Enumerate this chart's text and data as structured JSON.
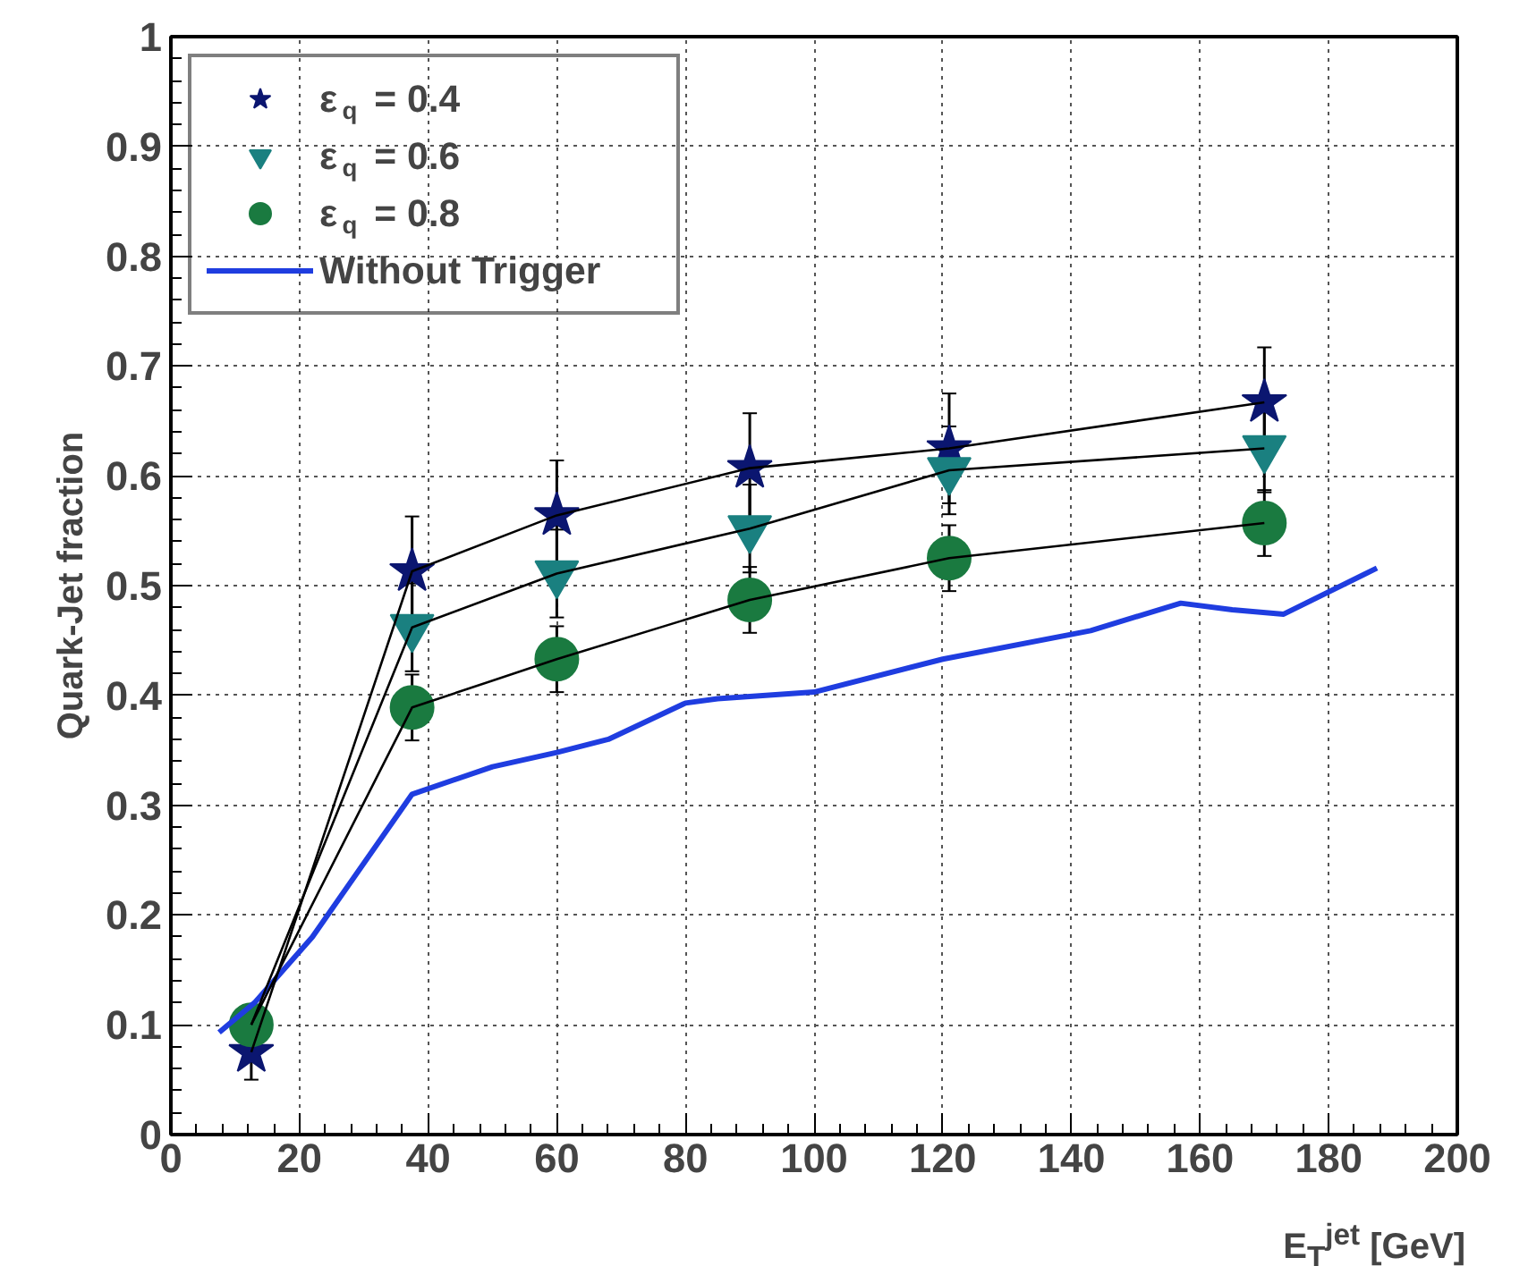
{
  "chart_data": {
    "type": "scatter",
    "xlabel": "E$_{T}$$^{jet}$ [GeV]",
    "ylabel": "Quark-Jet fraction",
    "xlim": [
      0,
      200
    ],
    "xticks": [
      0,
      20,
      40,
      60,
      80,
      100,
      120,
      140,
      160,
      180,
      200
    ],
    "ylim": [
      0,
      1
    ],
    "yticks": [
      0,
      0.1,
      0.2,
      0.3,
      0.4,
      0.5,
      0.6,
      0.7,
      0.8,
      0.9,
      1
    ],
    "grid": true,
    "legend": "top left",
    "line_style": "solid",
    "series": [
      {
        "type": "line",
        "color": "#000000",
        "marker": "none",
        "x": [
          12.5,
          37.5,
          60,
          90,
          121,
          170
        ],
        "values": [
          0.075,
          0.513,
          0.564,
          0.607,
          0.625,
          0.667
        ]
      },
      {
        "type": "line",
        "color": "#000000",
        "marker": "none",
        "x": [
          12.5,
          37.5,
          60,
          90,
          121,
          170
        ],
        "values": [
          0.1,
          0.462,
          0.511,
          0.552,
          0.605,
          0.625
        ]
      },
      {
        "type": "line",
        "color": "#000000",
        "marker": "none",
        "x": [
          12.5,
          37.5,
          60,
          90,
          121,
          170
        ],
        "values": [
          0.1,
          0.389,
          0.433,
          0.487,
          0.525,
          0.557
        ]
      },
      {
        "name": "ε$_{q}$ = 0.4",
        "color": "#0b1670",
        "marker": "star",
        "x": [
          12.5,
          37.5,
          60,
          90,
          121,
          170
        ],
        "values": [
          0.075,
          0.513,
          0.564,
          0.607,
          0.625,
          0.667
        ],
        "errors": [
          0.025,
          0.05,
          0.05,
          0.05,
          0.05,
          0.05
        ]
      },
      {
        "name": "ε$_{q}$ = 0.6",
        "color": "#1a8080",
        "marker": "triangle",
        "x": [
          37.5,
          60,
          90,
          121,
          170
        ],
        "values": [
          0.462,
          0.511,
          0.552,
          0.605,
          0.625
        ],
        "errors": [
          0.04,
          0.04,
          0.04,
          0.04,
          0.04
        ]
      },
      {
        "name": "ε$_{q}$ = 0.8",
        "color": "#1a7a40",
        "marker": "circle",
        "x": [
          12.5,
          37.5,
          60,
          90,
          121,
          170
        ],
        "values": [
          0.1,
          0.389,
          0.433,
          0.487,
          0.525,
          0.557
        ],
        "errors": [
          null,
          0.03,
          0.03,
          0.03,
          0.03,
          0.03
        ]
      },
      {
        "name": "Without Trigger",
        "type": "line",
        "color": "#1f3de0",
        "marker": "none",
        "x": [
          7.5,
          13,
          22,
          37.5,
          50,
          60,
          68,
          80,
          85,
          100,
          120,
          143,
          157,
          165,
          173,
          187.5
        ],
        "values": [
          0.093,
          0.12,
          0.18,
          0.31,
          0.335,
          0.348,
          0.36,
          0.393,
          0.397,
          0.403,
          0.433,
          0.459,
          0.484,
          0.478,
          0.474,
          0.516
        ]
      }
    ]
  }
}
